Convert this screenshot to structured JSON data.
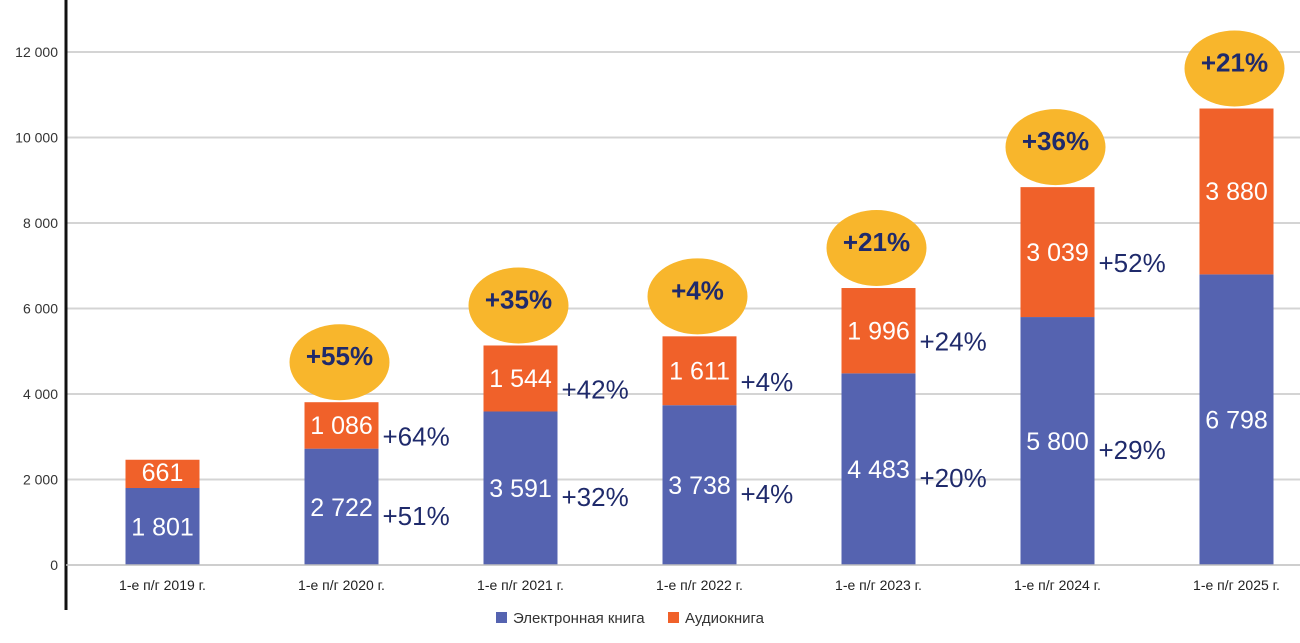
{
  "chart_data": {
    "type": "bar",
    "stacked": true,
    "categories": [
      "1-е п/г 2019 г.",
      "1-е п/г 2020 г.",
      "1-е п/г 2021 г.",
      "1-е п/г 2022 г.",
      "1-е п/г 2023 г.",
      "1-е п/г 2024 г.",
      "1-е п/г 2025 г."
    ],
    "series": [
      {
        "name": "Электронная книга",
        "color": "#5563b0",
        "values": [
          1801,
          2722,
          3591,
          3738,
          4483,
          5800,
          6798
        ],
        "labels": [
          "1 801",
          "2 722",
          "3 591",
          "3 738",
          "4 483",
          "5 800",
          "6 798"
        ],
        "growth": [
          null,
          "+51%",
          "+32%",
          "+4%",
          "+20%",
          "+29%",
          null
        ]
      },
      {
        "name": "Аудиокнига",
        "color": "#f0612a",
        "values": [
          661,
          1086,
          1544,
          1611,
          1996,
          3039,
          3880
        ],
        "labels": [
          "661",
          "1 086",
          "1 544",
          "1 611",
          "1 996",
          "3 039",
          "3 880"
        ],
        "growth": [
          null,
          "+64%",
          "+42%",
          "+4%",
          "+24%",
          "+52%",
          null
        ]
      }
    ],
    "total_growth": [
      null,
      "+55%",
      "+35%",
      "+4%",
      "+21%",
      "+36%",
      "+21%"
    ],
    "total_growth_color": "#f8b62c",
    "ylim": [
      0,
      12500
    ],
    "yticks": [
      0,
      2000,
      4000,
      6000,
      8000,
      10000,
      12000
    ],
    "ytick_labels": [
      "0",
      "2 000",
      "4 000",
      "6 000",
      "8 000",
      "10 000",
      "12 000"
    ],
    "grid": true,
    "legend_position": "bottom-center",
    "title": "",
    "xlabel": "",
    "ylabel": ""
  }
}
